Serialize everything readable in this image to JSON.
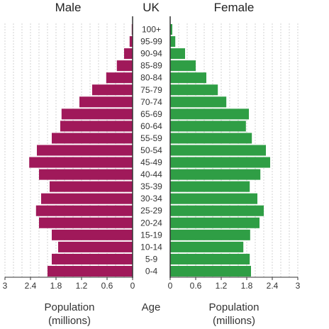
{
  "colors": {
    "male": "#a0195a",
    "female": "#2f9e45",
    "grid": "#c8c8c8",
    "axis": "#333333"
  },
  "chart_data": {
    "type": "bar",
    "orientation": "horizontal",
    "title": "UK",
    "age_groups": [
      "100+",
      "95-99",
      "90-94",
      "85-89",
      "80-84",
      "75-79",
      "70-74",
      "65-69",
      "60-64",
      "55-59",
      "50-54",
      "45-49",
      "40-44",
      "35-39",
      "30-34",
      "25-29",
      "20-24",
      "15-19",
      "10-14",
      "5-9",
      "0-4"
    ],
    "series": [
      {
        "name": "Male",
        "values": [
          0.02,
          0.07,
          0.2,
          0.37,
          0.62,
          0.95,
          1.25,
          1.67,
          1.7,
          1.9,
          2.25,
          2.43,
          2.2,
          1.95,
          2.15,
          2.27,
          2.2,
          1.9,
          1.75,
          1.9,
          2.0
        ]
      },
      {
        "name": "Female",
        "values": [
          0.05,
          0.12,
          0.35,
          0.6,
          0.85,
          1.12,
          1.32,
          1.85,
          1.78,
          1.92,
          2.25,
          2.35,
          2.12,
          1.87,
          2.05,
          2.2,
          2.1,
          1.88,
          1.72,
          1.87,
          1.9
        ]
      }
    ],
    "xticks": [
      "3",
      "2.4",
      "1.8",
      "1.2",
      "0.6",
      "0",
      "0",
      "0.6",
      "1.2",
      "1.8",
      "2.4",
      "3"
    ],
    "xlim": [
      0,
      3
    ],
    "x_axis_label_left": "Population\n(millions)",
    "center_label": "Age",
    "x_axis_label_right": "Population\n(millions)",
    "grid": "vertical dashed",
    "legend": "none"
  }
}
